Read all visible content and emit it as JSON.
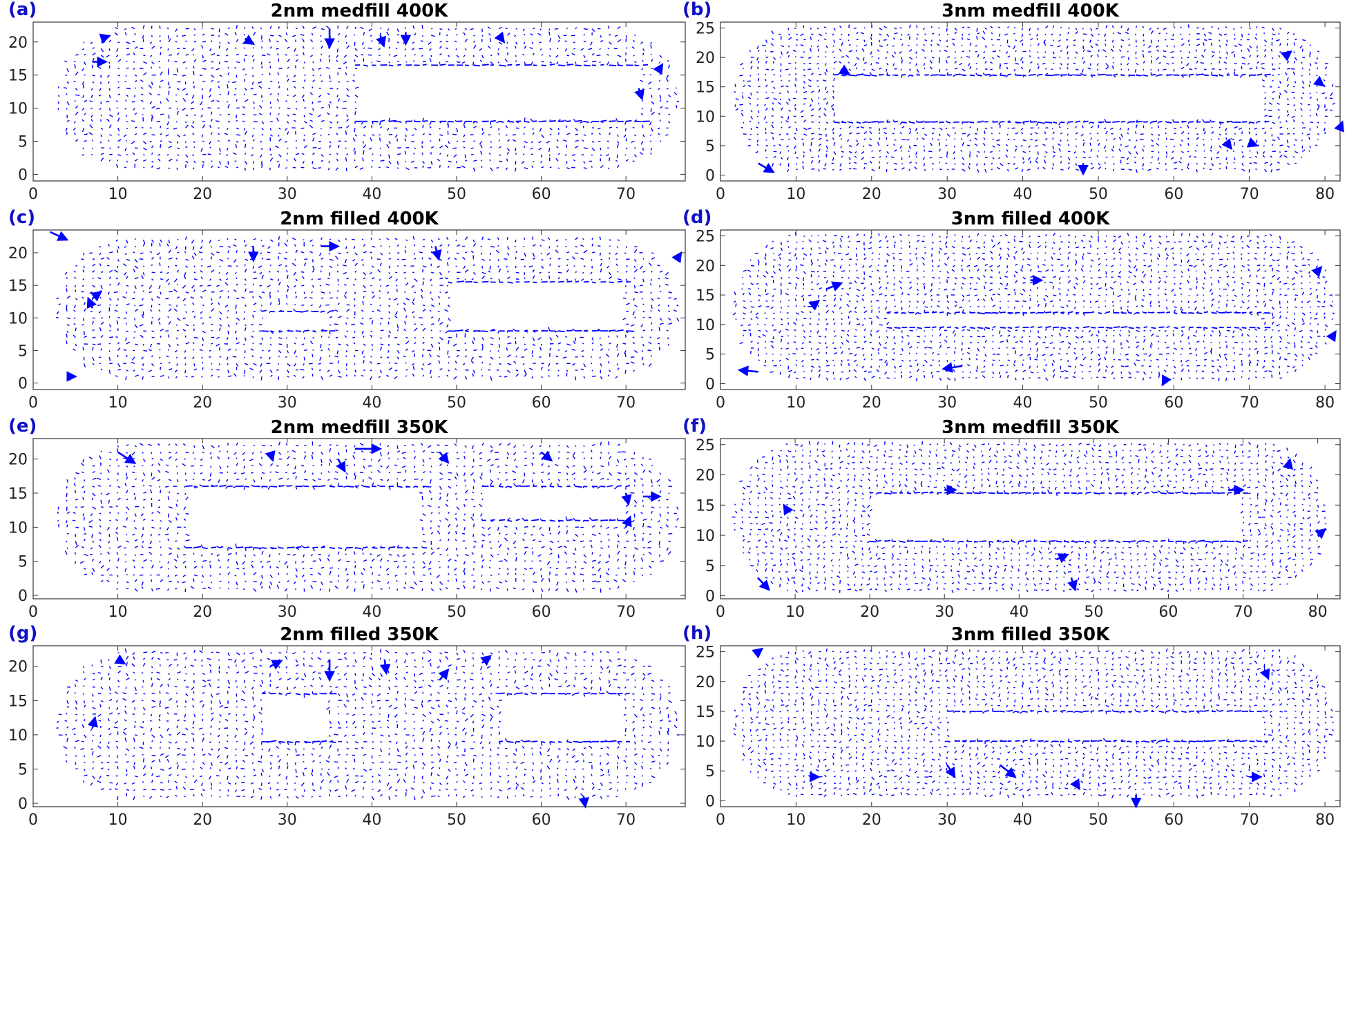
{
  "figure": {
    "label_color": "#1010c8",
    "arrow_color": "#0000ff",
    "axis_color": "#333333"
  },
  "chart_data": [
    {
      "type": "quiver",
      "label": "(a)",
      "title": "2nm medfill 400K",
      "xlim": [
        0,
        77
      ],
      "ylim": [
        -1,
        23
      ],
      "xticks": [
        0,
        10,
        20,
        30,
        40,
        50,
        60,
        70
      ],
      "yticks": [
        0,
        5,
        10,
        15,
        20
      ],
      "grid_x": [
        3,
        76
      ],
      "grid_y": [
        1,
        22
      ],
      "cap": 8,
      "voids": [
        {
          "x": [
            38,
            72
          ],
          "y": [
            8,
            16.5
          ]
        }
      ],
      "big_arrows": [
        [
          35,
          22,
          0,
          -2.8
        ],
        [
          41,
          21,
          0.4,
          -1.6
        ],
        [
          44,
          21.5,
          0,
          -1.8
        ],
        [
          25,
          20.5,
          1,
          -0.8
        ],
        [
          8,
          20.5,
          1,
          0.4
        ],
        [
          71.5,
          13,
          0.4,
          -1.6
        ],
        [
          74,
          16,
          0.3,
          0.6
        ],
        [
          7,
          17,
          1.6,
          0
        ],
        [
          55,
          21,
          0.6,
          -1
        ]
      ]
    },
    {
      "type": "quiver",
      "label": "(b)",
      "title": "3nm medfill 400K",
      "xlim": [
        0,
        82
      ],
      "ylim": [
        -1,
        26
      ],
      "xticks": [
        0,
        10,
        20,
        30,
        40,
        50,
        60,
        70,
        80
      ],
      "yticks": [
        0,
        5,
        10,
        15,
        20,
        25
      ],
      "grid_x": [
        2,
        81
      ],
      "grid_y": [
        1,
        25
      ],
      "cap": 8,
      "voids": [
        {
          "x": [
            15,
            72
          ],
          "y": [
            9,
            17
          ]
        }
      ],
      "big_arrows": [
        [
          5,
          2,
          2,
          -1.5
        ],
        [
          16,
          18,
          1,
          -0.8
        ],
        [
          48,
          2,
          0,
          -1.8
        ],
        [
          67,
          5.5,
          0.6,
          -1
        ],
        [
          70,
          5.5,
          1,
          -0.5
        ],
        [
          79,
          16,
          0.8,
          -0.8
        ],
        [
          75,
          20.5,
          0.5,
          0.5
        ],
        [
          82,
          8,
          0.3,
          1
        ]
      ]
    },
    {
      "type": "quiver",
      "label": "(c)",
      "title": "2nm filled 400K",
      "xlim": [
        0,
        77
      ],
      "ylim": [
        -1,
        23.5
      ],
      "xticks": [
        0,
        10,
        20,
        30,
        40,
        50,
        60,
        70
      ],
      "yticks": [
        0,
        5,
        10,
        15,
        20
      ],
      "grid_x": [
        3,
        76
      ],
      "grid_y": [
        1,
        22
      ],
      "cap": 8,
      "voids": [
        {
          "x": [
            27,
            35
          ],
          "y": [
            8,
            11
          ]
        },
        {
          "x": [
            49,
            70
          ],
          "y": [
            8,
            15.5
          ]
        }
      ],
      "big_arrows": [
        [
          2,
          23.2,
          2,
          -1.2
        ],
        [
          26,
          21,
          0,
          -2.2
        ],
        [
          47.5,
          21,
          0.4,
          -2
        ],
        [
          34,
          21,
          2,
          0
        ],
        [
          7,
          11.5,
          -0.5,
          1.5
        ],
        [
          4,
          1,
          1,
          0
        ],
        [
          76,
          19,
          0.5,
          1
        ],
        [
          7,
          13,
          1,
          1
        ]
      ]
    },
    {
      "type": "quiver",
      "label": "(d)",
      "title": "3nm filled 400K",
      "xlim": [
        0,
        82
      ],
      "ylim": [
        -1,
        26
      ],
      "xticks": [
        0,
        10,
        20,
        30,
        40,
        50,
        60,
        70,
        80
      ],
      "yticks": [
        0,
        5,
        10,
        15,
        20,
        25
      ],
      "grid_x": [
        2,
        81
      ],
      "grid_y": [
        1,
        25
      ],
      "cap": 8,
      "voids": [
        {
          "x": [
            22,
            72
          ],
          "y": [
            9.5,
            12
          ]
        }
      ],
      "big_arrows": [
        [
          5,
          2,
          -2.5,
          0.3
        ],
        [
          32,
          3,
          -2.5,
          -0.5
        ],
        [
          59,
          1,
          -0.5,
          -1.2
        ],
        [
          41,
          17.5,
          1.5,
          0
        ],
        [
          14,
          16,
          2,
          1
        ],
        [
          12,
          13,
          1,
          1
        ],
        [
          79,
          19,
          0.5,
          0.7
        ],
        [
          81,
          8,
          0.4,
          0.8
        ]
      ]
    },
    {
      "type": "quiver",
      "label": "(e)",
      "title": "2nm medfill 350K",
      "xlim": [
        0,
        77
      ],
      "ylim": [
        -0.5,
        23
      ],
      "xticks": [
        0,
        10,
        20,
        30,
        40,
        50,
        60,
        70
      ],
      "yticks": [
        0,
        5,
        10,
        15,
        20
      ],
      "grid_x": [
        3,
        76
      ],
      "grid_y": [
        1,
        22
      ],
      "cap": 8,
      "voids": [
        {
          "x": [
            18,
            46
          ],
          "y": [
            7,
            16
          ]
        },
        {
          "x": [
            53,
            70
          ],
          "y": [
            11,
            16
          ]
        }
      ],
      "big_arrows": [
        [
          10,
          21,
          2,
          -1.6
        ],
        [
          38,
          21.5,
          3,
          0
        ],
        [
          36,
          20,
          0.8,
          -1.8
        ],
        [
          48,
          21,
          1,
          -1.5
        ],
        [
          60,
          21,
          1.2,
          -1.2
        ],
        [
          70,
          15,
          0.3,
          -1.6
        ],
        [
          72,
          14.5,
          2,
          0
        ],
        [
          70,
          10,
          0.5,
          1.5
        ],
        [
          28,
          21,
          0.3,
          -1.2
        ]
      ]
    },
    {
      "type": "quiver",
      "label": "(f)",
      "title": "3nm medfill 350K",
      "xlim": [
        0,
        83
      ],
      "ylim": [
        -0.5,
        26
      ],
      "xticks": [
        0,
        10,
        20,
        30,
        40,
        50,
        60,
        70,
        80
      ],
      "yticks": [
        0,
        5,
        10,
        15,
        20,
        25
      ],
      "grid_x": [
        2,
        81
      ],
      "grid_y": [
        1,
        25
      ],
      "cap": 8,
      "voids": [
        {
          "x": [
            20,
            70
          ],
          "y": [
            9,
            17
          ]
        }
      ],
      "big_arrows": [
        [
          5,
          3,
          1.5,
          -2
        ],
        [
          47,
          3,
          0.5,
          -2
        ],
        [
          45,
          6,
          1.5,
          0.8
        ],
        [
          80,
          10,
          1,
          1
        ],
        [
          68,
          17.5,
          2,
          0
        ],
        [
          9,
          14,
          -0.5,
          1
        ],
        [
          30,
          17.5,
          1.5,
          0
        ],
        [
          76,
          21,
          0.3,
          1.5
        ]
      ]
    },
    {
      "type": "quiver",
      "label": "(g)",
      "title": "2nm filled 350K",
      "xlim": [
        0,
        77
      ],
      "ylim": [
        -0.5,
        23
      ],
      "xticks": [
        0,
        10,
        20,
        30,
        40,
        50,
        60,
        70
      ],
      "yticks": [
        0,
        5,
        10,
        15,
        20
      ],
      "grid_x": [
        3,
        76
      ],
      "grid_y": [
        1,
        22
      ],
      "cap": 8,
      "voids": [
        {
          "x": [
            27,
            35
          ],
          "y": [
            9,
            16
          ]
        },
        {
          "x": [
            55,
            70
          ],
          "y": [
            9,
            16
          ]
        }
      ],
      "big_arrows": [
        [
          35,
          21,
          0,
          -3
        ],
        [
          41.5,
          21,
          0.2,
          -2
        ],
        [
          53,
          20.5,
          1,
          1
        ],
        [
          28,
          20,
          1.3,
          0.8
        ],
        [
          65,
          1,
          0.2,
          -1.5
        ],
        [
          48,
          18,
          1,
          1.5
        ],
        [
          7,
          11,
          0.3,
          1.5
        ],
        [
          10,
          21,
          0.8,
          -0.6
        ]
      ]
    },
    {
      "type": "quiver",
      "label": "(h)",
      "title": "3nm filled 350K",
      "xlim": [
        0,
        82
      ],
      "ylim": [
        -1,
        26
      ],
      "xticks": [
        0,
        10,
        20,
        30,
        40,
        50,
        60,
        70,
        80
      ],
      "yticks": [
        0,
        5,
        10,
        15,
        20,
        25
      ],
      "grid_x": [
        2,
        81
      ],
      "grid_y": [
        1,
        25
      ],
      "cap": 8,
      "voids": [
        {
          "x": [
            30,
            72
          ],
          "y": [
            10,
            15
          ]
        }
      ],
      "big_arrows": [
        [
          37,
          6,
          2,
          -2
        ],
        [
          30,
          6,
          1,
          -2
        ],
        [
          55,
          1,
          0,
          -2
        ],
        [
          72,
          22,
          0.5,
          -1.5
        ],
        [
          70,
          4,
          1.5,
          0
        ],
        [
          47,
          3,
          0.5,
          -1
        ],
        [
          12,
          4,
          1,
          0
        ],
        [
          5,
          25,
          0.5,
          0.5
        ]
      ]
    }
  ]
}
